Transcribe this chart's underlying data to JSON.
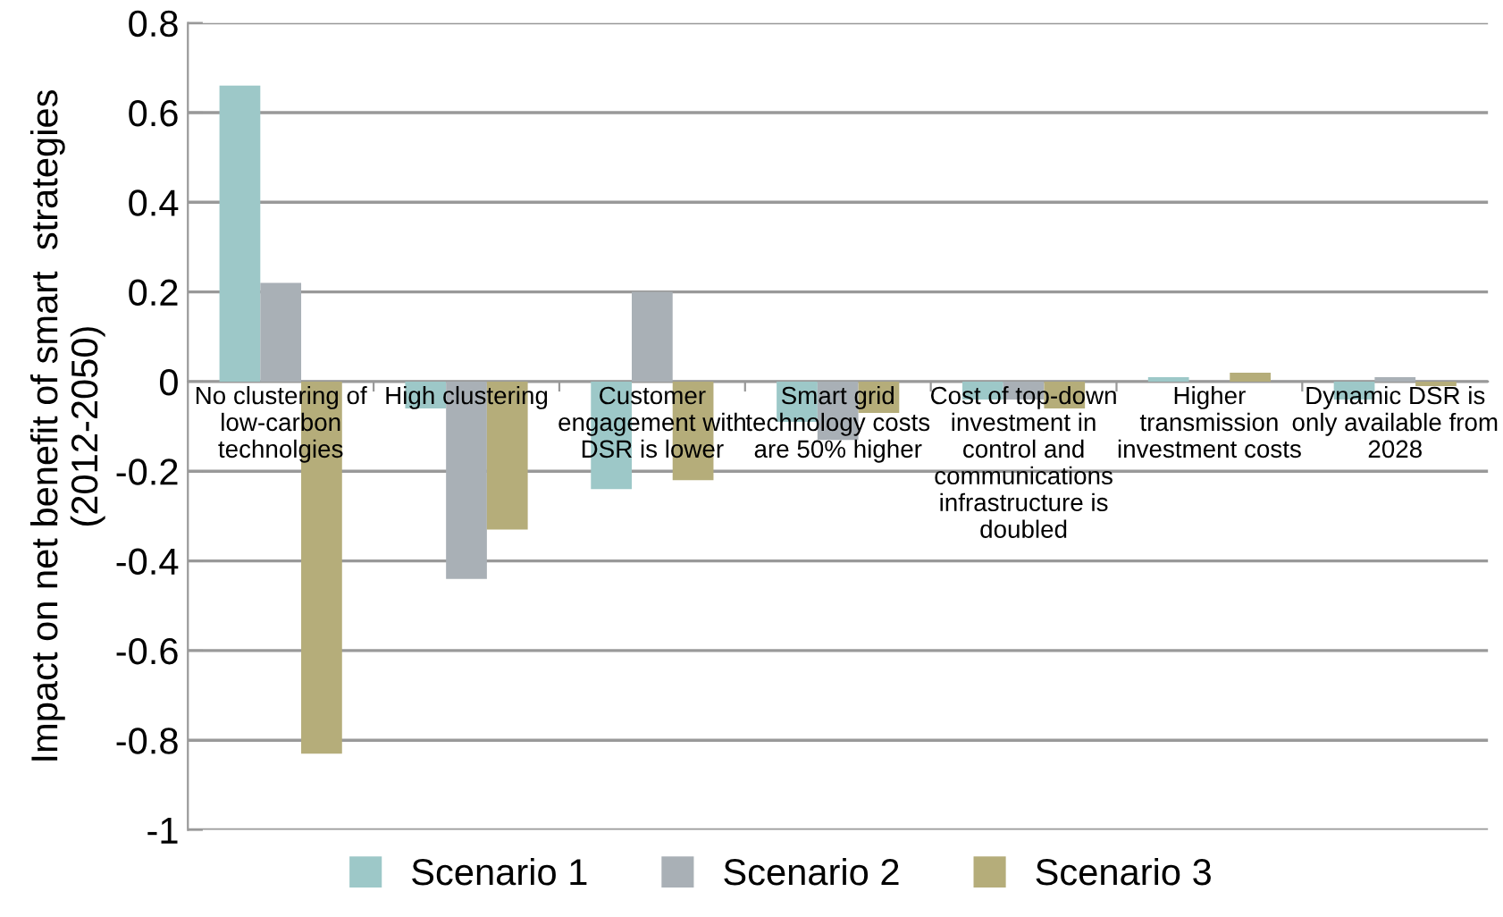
{
  "chart_data": {
    "type": "bar",
    "ylabel": "Impact on net benefit of smart  strategies\n(2012-2050)",
    "categories": [
      "No clustering of\nlow-carbon\ntechnolgies",
      "High clustering",
      "Customer\nengagement with\nDSR is lower",
      "Smart grid\ntechnology costs\nare 50% higher",
      "Cost of top-down\ninvestment in\ncontrol and\ncommunications\ninfrastructure is\ndoubled",
      "Higher\ntransmission\ninvestment costs",
      "Dynamic DSR is\nonly available from\n2028"
    ],
    "series": [
      {
        "name": "Scenario 1",
        "color": "#9dc8c8",
        "values": [
          0.66,
          -0.06,
          -0.24,
          -0.09,
          -0.04,
          0.01,
          -0.04
        ]
      },
      {
        "name": "Scenario 2",
        "color": "#a9b0b6",
        "values": [
          0.22,
          -0.44,
          0.2,
          -0.13,
          -0.04,
          0,
          0.01
        ]
      },
      {
        "name": "Scenario 3",
        "color": "#b5ad7a",
        "values": [
          -0.83,
          -0.33,
          -0.22,
          -0.07,
          -0.06,
          0.02,
          -0.01
        ]
      }
    ],
    "ylim": [
      -1,
      0.8
    ],
    "yticks": [
      -1,
      -0.8,
      -0.6,
      -0.4,
      -0.2,
      0,
      0.2,
      0.4,
      0.6,
      0.8
    ],
    "grid": "y",
    "legend": "bottom"
  }
}
